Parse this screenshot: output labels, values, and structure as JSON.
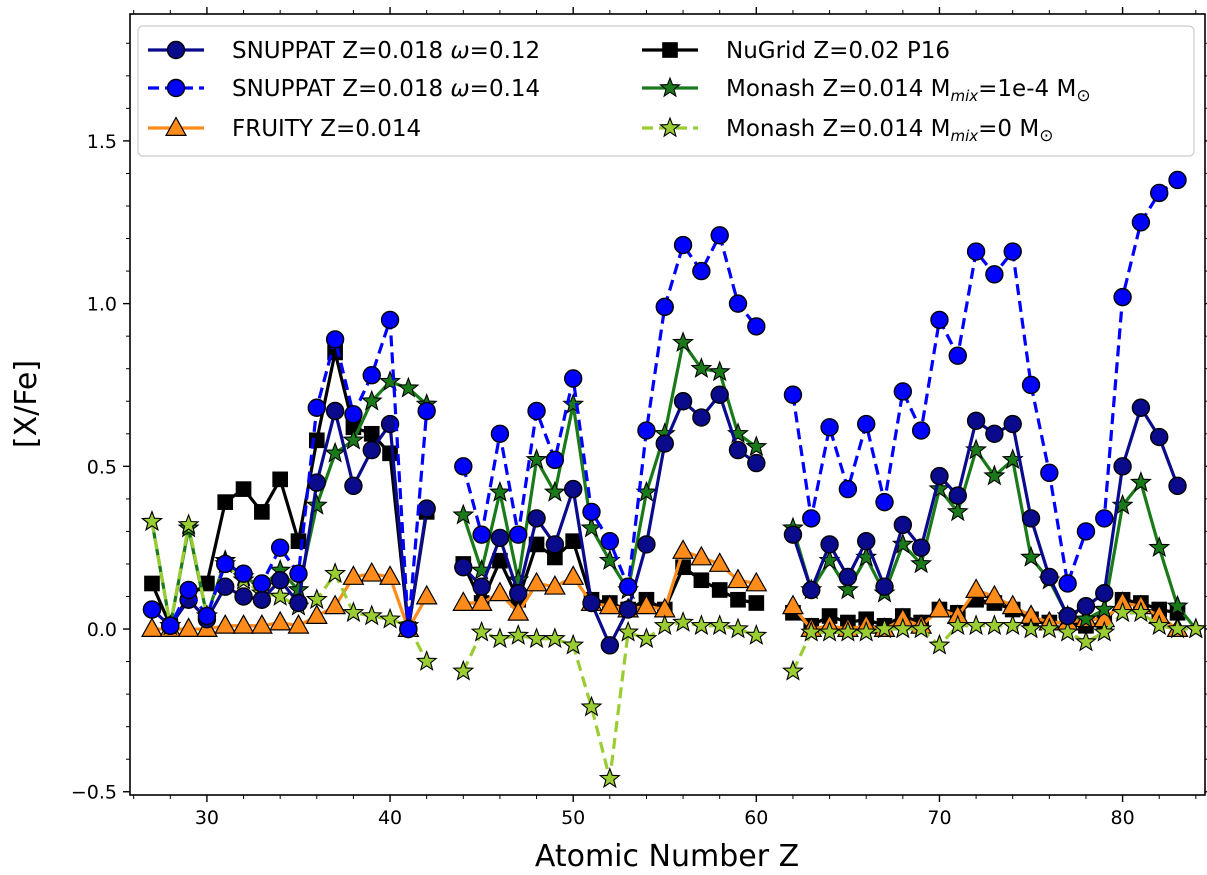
{
  "chart_data": {
    "type": "line",
    "title": "",
    "xlabel": "Atomic Number Z",
    "ylabel": "[X/Fe]",
    "xlim": [
      25.8,
      84.5
    ],
    "ylim": [
      -0.51,
      1.89
    ],
    "xticks": [
      30,
      40,
      50,
      60,
      70,
      80
    ],
    "xtick_labels": [
      "30",
      "40",
      "50",
      "60",
      "70",
      "80"
    ],
    "yticks": [
      -0.5,
      0.0,
      0.5,
      1.0,
      1.5
    ],
    "ytick_labels": [
      "−0.5",
      "0.0",
      "0.5",
      "1.0",
      "1.5"
    ],
    "grid": false,
    "legend_position": "top",
    "series": [
      {
        "name": "NuGrid    Z=0.02 P16",
        "color": "#000000",
        "marker": "square",
        "dash": "solid",
        "x": [
          27,
          28,
          29,
          30,
          31,
          32,
          33,
          34,
          35,
          36,
          37,
          38,
          39,
          40,
          41,
          42,
          null,
          44,
          45,
          46,
          47,
          48,
          49,
          50,
          51,
          52,
          53,
          54,
          55,
          56,
          57,
          58,
          59,
          60,
          null,
          62,
          63,
          64,
          65,
          66,
          67,
          68,
          69,
          70,
          71,
          72,
          73,
          74,
          75,
          76,
          77,
          78,
          79,
          80,
          81,
          82,
          83
        ],
        "y": [
          0.14,
          0.01,
          0.1,
          0.14,
          0.39,
          0.43,
          0.36,
          0.46,
          0.27,
          0.58,
          0.85,
          0.62,
          0.6,
          0.54,
          0.0,
          0.36,
          null,
          0.2,
          0.08,
          0.21,
          0.09,
          0.26,
          0.22,
          0.27,
          0.09,
          0.08,
          0.06,
          0.09,
          0.06,
          0.19,
          0.15,
          0.12,
          0.09,
          0.08,
          null,
          0.05,
          0.01,
          0.04,
          0.02,
          0.03,
          0.01,
          0.04,
          0.02,
          0.06,
          0.05,
          0.09,
          0.08,
          0.06,
          0.03,
          0.02,
          0.02,
          0.01,
          0.02,
          0.09,
          0.08,
          0.06,
          0.05
        ]
      },
      {
        "name": "FRUITY    Z=0.014",
        "color": "#ff8c1a",
        "marker": "triangle",
        "dash": "solid",
        "x": [
          27,
          28,
          29,
          30,
          31,
          32,
          33,
          34,
          35,
          36,
          37,
          38,
          39,
          40,
          41,
          42,
          null,
          44,
          45,
          46,
          47,
          48,
          49,
          50,
          51,
          52,
          53,
          54,
          55,
          56,
          57,
          58,
          59,
          60,
          null,
          62,
          63,
          64,
          65,
          66,
          67,
          68,
          69,
          70,
          71,
          72,
          73,
          74,
          75,
          76,
          77,
          78,
          79,
          80,
          81,
          82,
          83
        ],
        "y": [
          0.0,
          0.0,
          0.0,
          0.0,
          0.01,
          0.01,
          0.01,
          0.02,
          0.01,
          0.04,
          0.07,
          0.16,
          0.17,
          0.16,
          0.0,
          0.1,
          null,
          0.08,
          0.08,
          0.11,
          0.05,
          0.14,
          0.13,
          0.16,
          0.08,
          0.07,
          0.06,
          0.07,
          0.06,
          0.24,
          0.22,
          0.2,
          0.15,
          0.14,
          null,
          0.07,
          0.0,
          0.01,
          0.0,
          0.01,
          0.0,
          0.03,
          0.01,
          0.06,
          0.04,
          0.12,
          0.1,
          0.07,
          0.04,
          0.02,
          0.02,
          0.03,
          0.03,
          0.08,
          0.07,
          0.04,
          0.0
        ]
      },
      {
        "name": "Monash   Z=0.014 M_mix=1e-4 M_⊙",
        "color": "#1a7a1a",
        "marker": "star",
        "dash": "solid",
        "x": [
          27,
          28,
          29,
          30,
          31,
          32,
          33,
          34,
          35,
          36,
          37,
          38,
          39,
          40,
          41,
          42,
          null,
          44,
          45,
          46,
          47,
          48,
          49,
          50,
          51,
          52,
          53,
          54,
          55,
          56,
          57,
          58,
          59,
          60,
          null,
          62,
          63,
          64,
          65,
          66,
          67,
          68,
          69,
          70,
          71,
          72,
          73,
          74,
          75,
          76,
          77,
          78,
          79,
          80,
          81,
          82,
          83,
          84
        ],
        "y": [
          0.33,
          0.01,
          0.31,
          0.04,
          0.21,
          0.16,
          0.13,
          0.18,
          0.12,
          0.38,
          0.54,
          0.58,
          0.7,
          0.76,
          0.74,
          0.69,
          null,
          0.35,
          0.18,
          0.42,
          0.15,
          0.52,
          0.42,
          0.69,
          0.31,
          0.21,
          0.12,
          0.42,
          0.6,
          0.88,
          0.8,
          0.79,
          0.6,
          0.56,
          null,
          0.31,
          0.12,
          0.21,
          0.12,
          0.22,
          0.11,
          0.26,
          0.2,
          0.43,
          0.36,
          0.55,
          0.47,
          0.52,
          0.22,
          0.15,
          0.04,
          0.03,
          0.06,
          0.38,
          0.45,
          0.25,
          0.07,
          0.0
        ]
      },
      {
        "name": "Monash   Z=0.014 M_mix=0 M_⊙",
        "color": "#9acd32",
        "marker": "star",
        "dash": "dashed",
        "x": [
          27,
          28,
          29,
          30,
          31,
          32,
          33,
          34,
          35,
          36,
          37,
          38,
          39,
          40,
          41,
          42,
          null,
          44,
          45,
          46,
          47,
          48,
          49,
          50,
          51,
          52,
          53,
          54,
          55,
          56,
          57,
          58,
          59,
          60,
          null,
          62,
          63,
          64,
          65,
          66,
          67,
          68,
          69,
          70,
          71,
          72,
          73,
          74,
          75,
          76,
          77,
          78,
          79,
          80,
          81,
          82,
          83,
          84
        ],
        "y": [
          0.33,
          0.01,
          0.32,
          0.04,
          0.2,
          0.15,
          0.11,
          0.1,
          0.07,
          0.09,
          0.17,
          0.05,
          0.04,
          0.03,
          0.01,
          -0.1,
          null,
          -0.13,
          -0.01,
          -0.03,
          -0.02,
          -0.03,
          -0.03,
          -0.05,
          -0.24,
          -0.46,
          -0.01,
          -0.03,
          0.01,
          0.02,
          0.01,
          0.01,
          0.0,
          -0.02,
          null,
          -0.13,
          -0.01,
          -0.01,
          -0.01,
          -0.01,
          0.0,
          0.0,
          0.0,
          -0.05,
          0.01,
          0.01,
          0.01,
          0.01,
          0.0,
          0.0,
          -0.01,
          -0.04,
          -0.01,
          0.05,
          0.05,
          0.01,
          0.0,
          0.0
        ]
      },
      {
        "name": "SNUPPAT Z=0.018 ω=0.12",
        "color": "#0a0a8c",
        "marker": "circle",
        "dash": "solid",
        "x": [
          27,
          28,
          29,
          30,
          31,
          32,
          33,
          34,
          35,
          36,
          37,
          38,
          39,
          40,
          41,
          42,
          null,
          44,
          45,
          46,
          47,
          48,
          49,
          50,
          51,
          52,
          53,
          54,
          55,
          56,
          57,
          58,
          59,
          60,
          null,
          62,
          63,
          64,
          65,
          66,
          67,
          68,
          69,
          70,
          71,
          72,
          73,
          74,
          75,
          76,
          77,
          78,
          79,
          80,
          81,
          82,
          83
        ],
        "y": [
          0.06,
          0.01,
          0.09,
          0.03,
          0.13,
          0.1,
          0.09,
          0.15,
          0.08,
          0.45,
          0.67,
          0.44,
          0.55,
          0.63,
          0.0,
          0.37,
          null,
          0.19,
          0.13,
          0.28,
          0.11,
          0.34,
          0.26,
          0.43,
          0.08,
          -0.05,
          0.06,
          0.26,
          0.57,
          0.7,
          0.65,
          0.72,
          0.55,
          0.51,
          null,
          0.29,
          0.12,
          0.26,
          0.16,
          0.27,
          0.13,
          0.32,
          0.25,
          0.47,
          0.41,
          0.64,
          0.6,
          0.63,
          0.34,
          0.16,
          0.04,
          0.07,
          0.11,
          0.5,
          0.68,
          0.59,
          0.44
        ]
      },
      {
        "name": "SNUPPAT Z=0.018 ω=0.14",
        "color": "#0000ff",
        "marker": "circle",
        "dash": "dashed",
        "x": [
          27,
          28,
          29,
          30,
          31,
          32,
          33,
          34,
          35,
          36,
          37,
          38,
          39,
          40,
          41,
          42,
          null,
          44,
          45,
          46,
          47,
          48,
          49,
          50,
          51,
          52,
          53,
          54,
          55,
          56,
          57,
          58,
          59,
          60,
          null,
          62,
          63,
          64,
          65,
          66,
          67,
          68,
          69,
          70,
          71,
          72,
          73,
          74,
          75,
          76,
          77,
          78,
          79,
          80,
          81,
          82,
          83
        ],
        "y": [
          0.06,
          0.01,
          0.12,
          0.04,
          0.2,
          0.17,
          0.14,
          0.25,
          0.17,
          0.68,
          0.89,
          0.66,
          0.78,
          0.95,
          0.0,
          0.67,
          null,
          0.5,
          0.29,
          0.6,
          0.29,
          0.67,
          0.52,
          0.77,
          0.36,
          0.27,
          0.13,
          0.61,
          0.99,
          1.18,
          1.1,
          1.21,
          1.0,
          0.93,
          null,
          0.72,
          0.34,
          0.62,
          0.43,
          0.63,
          0.39,
          0.73,
          0.61,
          0.95,
          0.84,
          1.16,
          1.09,
          1.16,
          0.75,
          0.48,
          0.14,
          0.3,
          0.34,
          1.02,
          1.25,
          1.34,
          1.38
        ]
      }
    ]
  },
  "legend": {
    "items": [
      {
        "main": "SNUPPAT Z=0.018 ",
        "omega": "ω",
        "tail": "=0.12",
        "series": 4
      },
      {
        "main": "SNUPPAT Z=0.018 ",
        "omega": "ω",
        "tail": "=0.14",
        "series": 5
      },
      {
        "main": "FRUITY    Z=0.014",
        "series": 1
      },
      {
        "main": "NuGrid    Z=0.02 P16",
        "series": 0
      },
      {
        "main": "Monash   Z=0.014 M",
        "sub": "mix",
        "tail": "=1e-4 M",
        "sun": "⊙",
        "series": 2
      },
      {
        "main": "Monash   Z=0.014 M",
        "sub": "mix",
        "tail": "=0 M",
        "sun": "⊙",
        "series": 3
      }
    ]
  }
}
